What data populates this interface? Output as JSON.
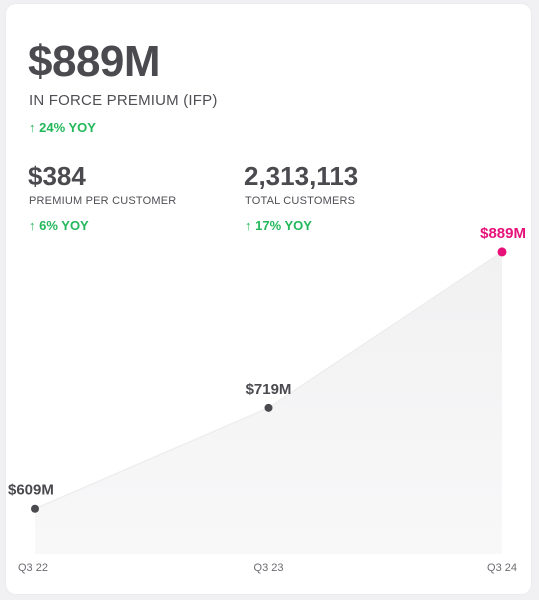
{
  "metrics": {
    "ifp": {
      "value": "$889M",
      "label": "IN FORCE PREMIUM (IFP)",
      "yoy": "↑ 24% YOY"
    },
    "premium_per_customer": {
      "value": "$384",
      "label": "PREMIUM PER CUSTOMER",
      "yoy": "↑ 6% YOY"
    },
    "total_customers": {
      "value": "2,313,113",
      "label": "TOTAL CUSTOMERS",
      "yoy": "↑ 17% YOY"
    }
  },
  "colors": {
    "positive": "#22b85a",
    "highlight": "#e6127a",
    "point": "#4a4a4f",
    "area": "#f3f3f4",
    "line": "#eeeeef"
  },
  "chart_data": {
    "type": "area",
    "categories": [
      "Q3 22",
      "Q3 23",
      "Q3 24"
    ],
    "values": [
      609,
      719,
      889
    ],
    "data_labels": [
      "$609M",
      "$719M",
      "$889M"
    ],
    "highlight_index": 2,
    "ylim": [
      600,
      890
    ]
  }
}
